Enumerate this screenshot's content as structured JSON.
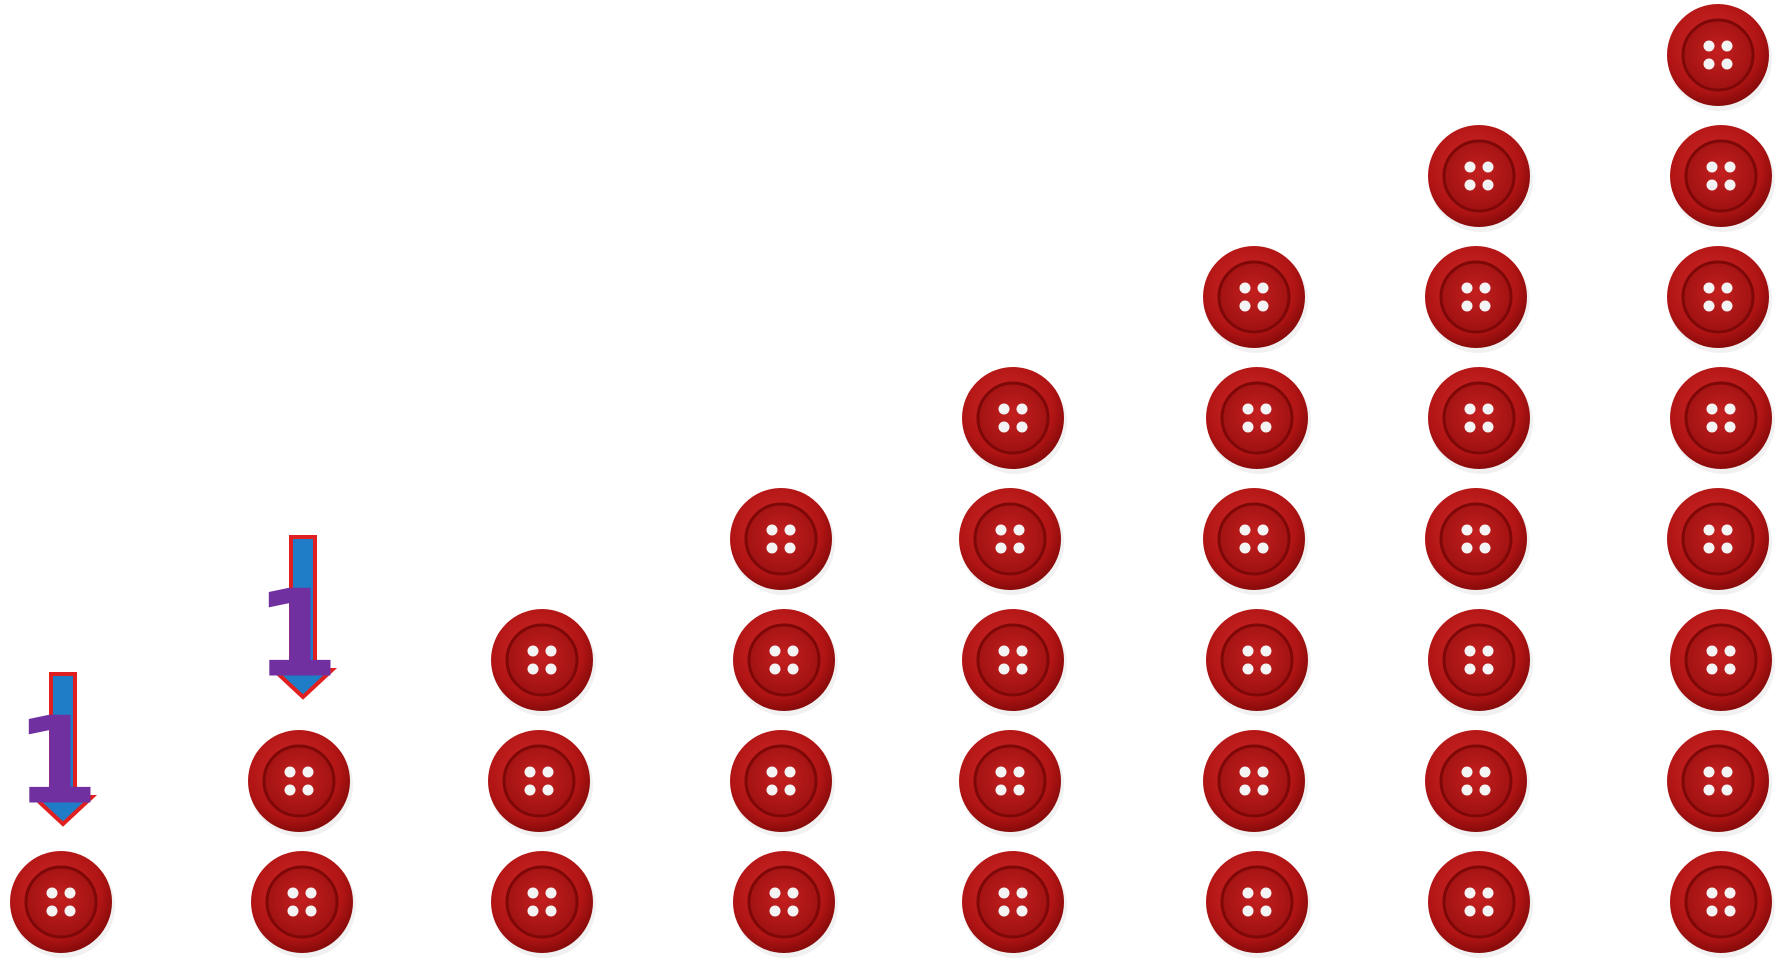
{
  "labels": [
    "1",
    "1"
  ]
}
